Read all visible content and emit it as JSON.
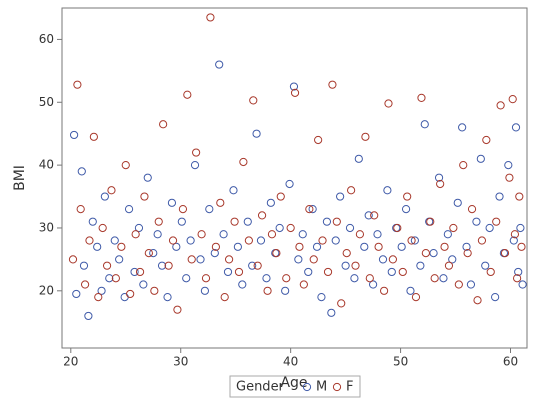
{
  "chart_data": {
    "type": "scatter",
    "x_label": "Age",
    "y_label": "BMI",
    "legend_title": "Gender",
    "xlim": [
      19.2,
      61.5
    ],
    "ylim": [
      10.9,
      65
    ],
    "xticks": [
      20,
      30,
      40,
      50,
      60
    ],
    "yticks": [
      20,
      30,
      40,
      50,
      60
    ],
    "grid": false,
    "legend_position": "bottom",
    "series": [
      {
        "name": "M",
        "color": "#3f5aa8",
        "x": [
          20.3,
          20.5,
          21.0,
          21.2,
          21.6,
          22.0,
          22.4,
          22.8,
          23.1,
          23.5,
          24.0,
          24.4,
          24.9,
          25.3,
          25.8,
          26.2,
          26.6,
          27.0,
          27.5,
          27.9,
          28.3,
          28.8,
          29.2,
          29.6,
          30.1,
          30.5,
          30.9,
          31.3,
          31.8,
          32.2,
          32.6,
          33.1,
          33.5,
          33.9,
          34.3,
          34.8,
          35.2,
          35.6,
          36.1,
          36.5,
          36.9,
          37.3,
          37.8,
          38.2,
          38.6,
          39.0,
          39.5,
          39.9,
          40.3,
          40.7,
          41.1,
          41.6,
          42.0,
          42.4,
          42.8,
          43.3,
          43.7,
          44.1,
          44.5,
          45.0,
          45.4,
          45.8,
          46.2,
          46.7,
          47.1,
          47.5,
          47.9,
          48.4,
          48.8,
          49.2,
          49.6,
          50.1,
          50.5,
          50.9,
          51.3,
          51.8,
          52.2,
          52.6,
          53.0,
          53.5,
          53.9,
          54.3,
          54.7,
          55.2,
          55.6,
          56.0,
          56.4,
          56.9,
          57.3,
          57.7,
          58.1,
          58.6,
          59.0,
          59.4,
          59.8,
          60.3,
          60.5,
          60.7,
          60.9,
          61.1
        ],
        "y": [
          44.8,
          19.5,
          39,
          24,
          16,
          31,
          27,
          20,
          35,
          22,
          28,
          25,
          19,
          33,
          23,
          30,
          21,
          38,
          26,
          29,
          24,
          19,
          34,
          27,
          31,
          22,
          28,
          40,
          25,
          20,
          33,
          26,
          56,
          29,
          23,
          36,
          27,
          21,
          31,
          24,
          45,
          28,
          22,
          34,
          26,
          30,
          20,
          37,
          52.5,
          25,
          29,
          23,
          33,
          27,
          19,
          31,
          16.5,
          28,
          35,
          24,
          30,
          22,
          41,
          27,
          32,
          21,
          29,
          25,
          36,
          23,
          30,
          27,
          33,
          20,
          28,
          24,
          46.5,
          31,
          26,
          38,
          22,
          29,
          25,
          34,
          46,
          27,
          21,
          31,
          41,
          24,
          30,
          19,
          35,
          26,
          40,
          28,
          46,
          23,
          30,
          21
        ]
      },
      {
        "name": "F",
        "color": "#a8382b",
        "x": [
          20.2,
          20.6,
          20.9,
          21.3,
          21.7,
          22.1,
          22.5,
          22.9,
          23.3,
          23.7,
          24.1,
          24.6,
          25.0,
          25.4,
          25.9,
          26.3,
          26.7,
          27.1,
          27.6,
          28.0,
          28.4,
          28.9,
          29.3,
          29.7,
          30.2,
          30.6,
          31.0,
          31.4,
          31.9,
          32.3,
          32.7,
          33.2,
          33.6,
          34.0,
          34.4,
          34.9,
          35.3,
          35.7,
          36.2,
          36.6,
          37.0,
          37.4,
          37.9,
          38.3,
          38.7,
          39.1,
          39.6,
          40.0,
          40.4,
          40.8,
          41.2,
          41.7,
          42.1,
          42.5,
          42.9,
          43.4,
          43.8,
          44.2,
          44.6,
          45.1,
          45.5,
          45.9,
          46.3,
          46.8,
          47.2,
          47.6,
          48.0,
          48.5,
          48.9,
          49.3,
          49.7,
          50.2,
          50.6,
          51.0,
          51.4,
          51.9,
          52.3,
          52.7,
          53.1,
          53.6,
          54.0,
          54.4,
          54.8,
          55.3,
          55.7,
          56.1,
          56.5,
          57.0,
          57.4,
          57.8,
          58.2,
          58.7,
          59.1,
          59.5,
          59.9,
          60.2,
          60.4,
          60.6,
          60.8,
          61.0
        ],
        "y": [
          25,
          52.8,
          33,
          21,
          28,
          44.5,
          19,
          30,
          24,
          36,
          22,
          27,
          40,
          19.5,
          29,
          23,
          35,
          26,
          20,
          31,
          46.5,
          24,
          28,
          17,
          33,
          51.2,
          25,
          42,
          29,
          22,
          63.5,
          27,
          34,
          19,
          25,
          31,
          23,
          40.5,
          28,
          50.3,
          24,
          32,
          20,
          29,
          26,
          35,
          22,
          30,
          51.5,
          27,
          21,
          33,
          25,
          44,
          28,
          23,
          52.8,
          31,
          18,
          26,
          36,
          24,
          29,
          44.5,
          22,
          32,
          27,
          20,
          49.8,
          25,
          30,
          23,
          35,
          28,
          19,
          50.7,
          26,
          31,
          22,
          37,
          27,
          24,
          30,
          21,
          40,
          26,
          33,
          18.5,
          28,
          44,
          23,
          31,
          49.5,
          26,
          38,
          50.5,
          29,
          22,
          35,
          27
        ]
      }
    ]
  }
}
